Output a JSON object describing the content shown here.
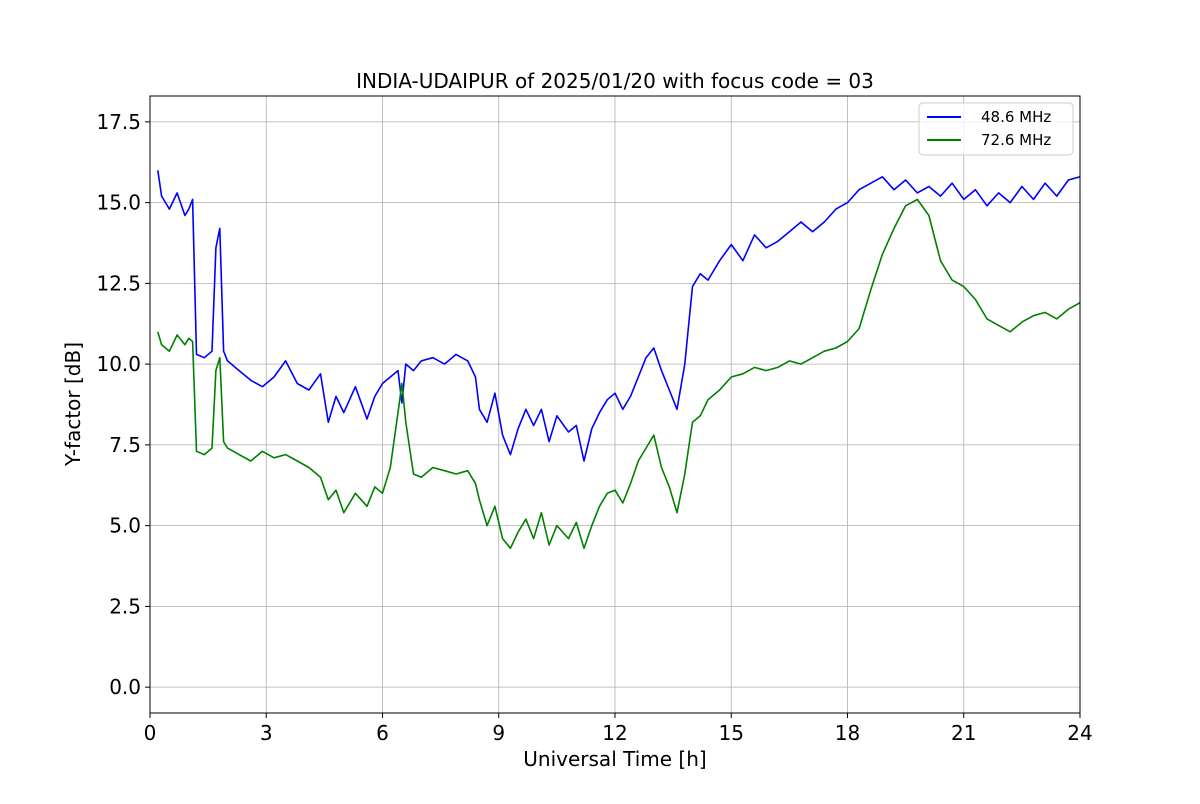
{
  "chart_data": {
    "type": "line",
    "title": "INDIA-UDAIPUR of 2025/01/20 with focus code = 03",
    "xlabel": "Universal Time [h]",
    "ylabel": "Y-factor [dB]",
    "xlim": [
      0,
      24
    ],
    "ylim": [
      -0.8,
      18.3
    ],
    "xticks": [
      0,
      3,
      6,
      9,
      12,
      15,
      18,
      21,
      24
    ],
    "yticks": [
      0.0,
      2.5,
      5.0,
      7.5,
      10.0,
      12.5,
      15.0,
      17.5
    ],
    "xtick_labels": [
      "0",
      "3",
      "6",
      "9",
      "12",
      "15",
      "18",
      "21",
      "24"
    ],
    "ytick_labels": [
      "0.0",
      "2.5",
      "5.0",
      "7.5",
      "10.0",
      "12.5",
      "15.0",
      "17.5"
    ],
    "grid": true,
    "legend_position": "top-right",
    "series": [
      {
        "name": "48.6 MHz",
        "color": "#0000ff",
        "x": [
          0.2,
          0.3,
          0.5,
          0.7,
          0.9,
          1.0,
          1.1,
          1.2,
          1.4,
          1.6,
          1.7,
          1.8,
          1.9,
          2.0,
          2.3,
          2.6,
          2.9,
          3.2,
          3.5,
          3.8,
          4.1,
          4.4,
          4.6,
          4.8,
          5.0,
          5.3,
          5.6,
          5.8,
          6.0,
          6.2,
          6.4,
          6.5,
          6.6,
          6.8,
          7.0,
          7.3,
          7.6,
          7.9,
          8.2,
          8.4,
          8.5,
          8.7,
          8.9,
          9.1,
          9.3,
          9.5,
          9.7,
          9.9,
          10.1,
          10.3,
          10.5,
          10.8,
          11.0,
          11.2,
          11.4,
          11.6,
          11.8,
          12.0,
          12.2,
          12.4,
          12.6,
          12.8,
          13.0,
          13.2,
          13.4,
          13.6,
          13.8,
          13.9,
          14.0,
          14.2,
          14.4,
          14.7,
          15.0,
          15.3,
          15.6,
          15.9,
          16.2,
          16.5,
          16.8,
          17.1,
          17.4,
          17.7,
          18.0,
          18.3,
          18.6,
          18.9,
          19.2,
          19.5,
          19.8,
          20.1,
          20.4,
          20.7,
          21.0,
          21.3,
          21.6,
          21.9,
          22.2,
          22.5,
          22.8,
          23.1,
          23.4,
          23.7,
          24.0
        ],
        "y": [
          16.0,
          15.2,
          14.8,
          15.3,
          14.6,
          14.8,
          15.1,
          10.3,
          10.2,
          10.4,
          13.6,
          14.2,
          10.4,
          10.1,
          9.8,
          9.5,
          9.3,
          9.6,
          10.1,
          9.4,
          9.2,
          9.7,
          8.2,
          9.0,
          8.5,
          9.3,
          8.3,
          9.0,
          9.4,
          9.6,
          9.8,
          8.8,
          10.0,
          9.8,
          10.1,
          10.2,
          10.0,
          10.3,
          10.1,
          9.6,
          8.6,
          8.2,
          9.1,
          7.8,
          7.2,
          8.0,
          8.6,
          8.1,
          8.6,
          7.6,
          8.4,
          7.9,
          8.1,
          7.0,
          8.0,
          8.5,
          8.9,
          9.1,
          8.6,
          9.0,
          9.6,
          10.2,
          10.5,
          9.8,
          9.2,
          8.6,
          10.0,
          11.2,
          12.4,
          12.8,
          12.6,
          13.2,
          13.7,
          13.2,
          14.0,
          13.6,
          13.8,
          14.1,
          14.4,
          14.1,
          14.4,
          14.8,
          15.0,
          15.4,
          15.6,
          15.8,
          15.4,
          15.7,
          15.3,
          15.5,
          15.2,
          15.6,
          15.1,
          15.4,
          14.9,
          15.3,
          15.0,
          15.5,
          15.1,
          15.6,
          15.2,
          15.7,
          15.8
        ]
      },
      {
        "name": "72.6 MHz",
        "color": "#008000",
        "x": [
          0.2,
          0.3,
          0.5,
          0.7,
          0.9,
          1.0,
          1.1,
          1.2,
          1.4,
          1.6,
          1.7,
          1.8,
          1.9,
          2.0,
          2.3,
          2.6,
          2.9,
          3.2,
          3.5,
          3.8,
          4.1,
          4.4,
          4.6,
          4.8,
          5.0,
          5.3,
          5.6,
          5.8,
          6.0,
          6.2,
          6.4,
          6.5,
          6.6,
          6.8,
          7.0,
          7.3,
          7.6,
          7.9,
          8.2,
          8.4,
          8.5,
          8.7,
          8.9,
          9.1,
          9.3,
          9.5,
          9.7,
          9.9,
          10.1,
          10.3,
          10.5,
          10.8,
          11.0,
          11.2,
          11.4,
          11.6,
          11.8,
          12.0,
          12.2,
          12.4,
          12.6,
          12.8,
          13.0,
          13.2,
          13.4,
          13.6,
          13.8,
          13.9,
          14.0,
          14.2,
          14.4,
          14.7,
          15.0,
          15.3,
          15.6,
          15.9,
          16.2,
          16.5,
          16.8,
          17.1,
          17.4,
          17.7,
          18.0,
          18.3,
          18.6,
          18.9,
          19.2,
          19.5,
          19.8,
          20.1,
          20.4,
          20.7,
          21.0,
          21.3,
          21.6,
          21.9,
          22.2,
          22.5,
          22.8,
          23.1,
          23.4,
          23.7,
          24.0
        ],
        "y": [
          11.0,
          10.6,
          10.4,
          10.9,
          10.6,
          10.8,
          10.7,
          7.3,
          7.2,
          7.4,
          9.8,
          10.2,
          7.6,
          7.4,
          7.2,
          7.0,
          7.3,
          7.1,
          7.2,
          7.0,
          6.8,
          6.5,
          5.8,
          6.1,
          5.4,
          6.0,
          5.6,
          6.2,
          6.0,
          6.8,
          8.5,
          9.4,
          8.2,
          6.6,
          6.5,
          6.8,
          6.7,
          6.6,
          6.7,
          6.3,
          5.8,
          5.0,
          5.6,
          4.6,
          4.3,
          4.8,
          5.2,
          4.6,
          5.4,
          4.4,
          5.0,
          4.6,
          5.1,
          4.3,
          5.0,
          5.6,
          6.0,
          6.1,
          5.7,
          6.3,
          7.0,
          7.4,
          7.8,
          6.8,
          6.2,
          5.4,
          6.6,
          7.4,
          8.2,
          8.4,
          8.9,
          9.2,
          9.6,
          9.7,
          9.9,
          9.8,
          9.9,
          10.1,
          10.0,
          10.2,
          10.4,
          10.5,
          10.7,
          11.1,
          12.3,
          13.4,
          14.2,
          14.9,
          15.1,
          14.6,
          13.2,
          12.6,
          12.4,
          12.0,
          11.4,
          11.2,
          11.0,
          11.3,
          11.5,
          11.6,
          11.4,
          11.7,
          11.9
        ]
      }
    ]
  }
}
